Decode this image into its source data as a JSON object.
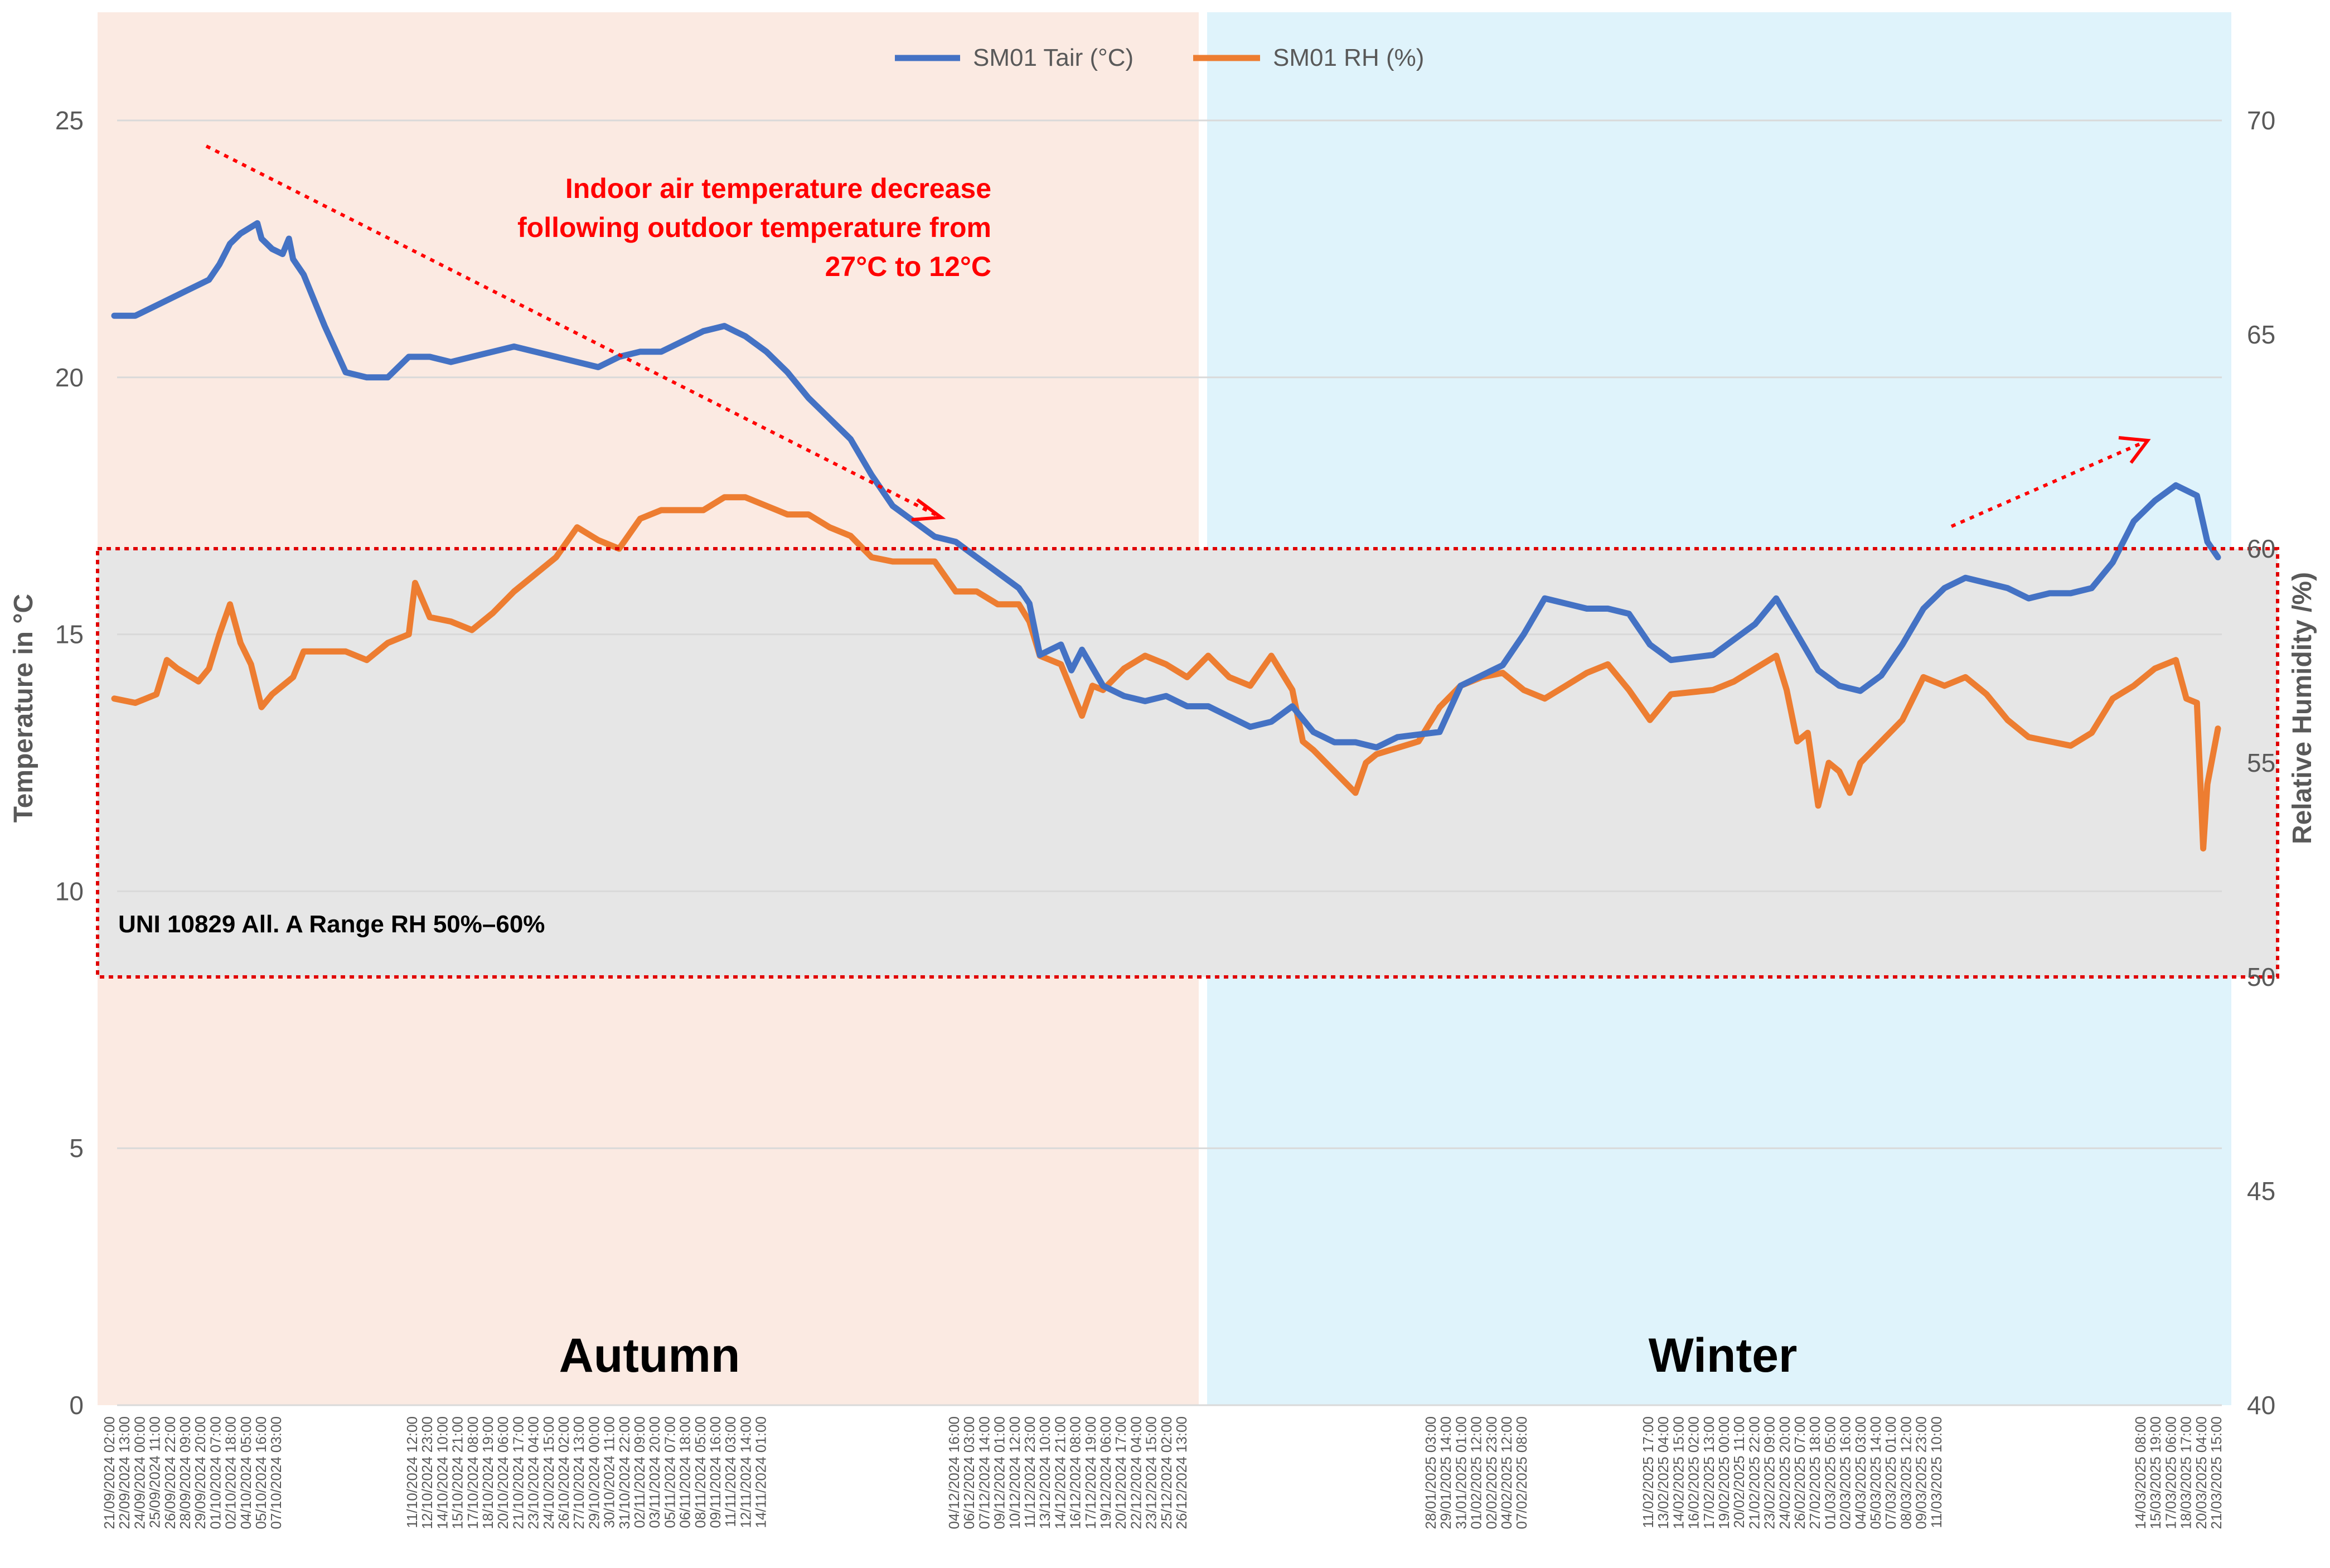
{
  "colors": {
    "autumn_bg": "#fbeae2",
    "winter_bg": "#dff3fb",
    "range_band": "#e6e6e6",
    "range_border": "#e00000",
    "tair": "#4472c4",
    "rh": "#ed7d31",
    "annotation": "#ff0000",
    "axis_text": "#595959",
    "gridline": "#d9d9d9"
  },
  "chart_data": {
    "type": "line",
    "title": "",
    "ylabel": "Temperature in °C",
    "y2label": "Relative Humidity /%)",
    "ylim": [
      0,
      27
    ],
    "y2lim": [
      40,
      72
    ],
    "yticks": [
      "0",
      "5",
      "10",
      "15",
      "20",
      "25"
    ],
    "y2ticks": [
      "40",
      "45",
      "50",
      "55",
      "60",
      "65",
      "70"
    ],
    "legend": {
      "position": "top-center",
      "entries": [
        "SM01 Tair (°C)",
        "SM01 RH (%)"
      ]
    },
    "x_tick_labels": [
      "21/09/2024 02:00",
      "22/09/2024 13:00",
      "24/09/2024 00:00",
      "25/09/2024 11:00",
      "26/09/2024 22:00",
      "28/09/2024 09:00",
      "29/09/2024 20:00",
      "01/10/2024 07:00",
      "02/10/2024 18:00",
      "04/10/2024 05:00",
      "05/10/2024 16:00",
      "07/10/2024 03:00",
      "11/10/2024 12:00",
      "12/10/2024 23:00",
      "14/10/2024 10:00",
      "15/10/2024 21:00",
      "17/10/2024 08:00",
      "18/10/2024 19:00",
      "20/10/2024 06:00",
      "21/10/2024 17:00",
      "23/10/2024 04:00",
      "24/10/2024 15:00",
      "26/10/2024 02:00",
      "27/10/2024 13:00",
      "29/10/2024 00:00",
      "30/10/2024 11:00",
      "31/10/2024 22:00",
      "02/11/2024 09:00",
      "03/11/2024 20:00",
      "05/11/2024 07:00",
      "06/11/2024 18:00",
      "08/11/2024 05:00",
      "09/11/2024 16:00",
      "11/11/2024 03:00",
      "12/11/2024 14:00",
      "14/11/2024 01:00",
      "04/12/2024 16:00",
      "06/12/2024 03:00",
      "07/12/2024 14:00",
      "09/12/2024 01:00",
      "10/12/2024 12:00",
      "11/12/2024 23:00",
      "13/12/2024 10:00",
      "14/12/2024 21:00",
      "16/12/2024 08:00",
      "17/12/2024 19:00",
      "19/12/2024 06:00",
      "20/12/2024 17:00",
      "22/12/2024 04:00",
      "23/12/2024 15:00",
      "25/12/2024 02:00",
      "26/12/2024 13:00",
      "28/01/2025 03:00",
      "29/01/2025 14:00",
      "31/01/2025 01:00",
      "01/02/2025 12:00",
      "02/02/2025 23:00",
      "04/02/2025 12:00",
      "07/02/2025 08:00",
      "11/02/2025 17:00",
      "13/02/2025 04:00",
      "14/02/2025 15:00",
      "16/02/2025 02:00",
      "17/02/2025 13:00",
      "19/02/2025 00:00",
      "20/02/2025 11:00",
      "21/02/2025 22:00",
      "23/02/2025 09:00",
      "24/02/2025 20:00",
      "26/02/2025 07:00",
      "27/02/2025 18:00",
      "01/03/2025 05:00",
      "02/03/2025 16:00",
      "04/03/2025 03:00",
      "05/03/2025 14:00",
      "07/03/2025 01:00",
      "08/03/2025 12:00",
      "09/03/2025 23:00",
      "11/03/2025 10:00",
      "14/03/2025 08:00",
      "15/03/2025 19:00",
      "17/03/2025 06:00",
      "18/03/2025 17:00",
      "20/03/2025 04:00",
      "21/03/2025 15:00"
    ],
    "x_index_range": [
      0,
      100
    ],
    "season_split_index": 52.1,
    "seasons": [
      {
        "name": "Autumn",
        "from": 0,
        "to": 52.1
      },
      {
        "name": "Winter",
        "from": 52.1,
        "to": 100
      }
    ],
    "rh_range": {
      "label": "UNI 10829 All. A Range RH 50%–60%",
      "min_rh": 50,
      "max_rh": 60
    },
    "series": [
      {
        "name": "SM01 Tair (°C)",
        "axis": "left",
        "points": [
          [
            0.0,
            21.2
          ],
          [
            1.0,
            21.2
          ],
          [
            2.0,
            21.4
          ],
          [
            3.5,
            21.7
          ],
          [
            4.5,
            21.9
          ],
          [
            5.0,
            22.2
          ],
          [
            5.5,
            22.6
          ],
          [
            6.0,
            22.8
          ],
          [
            6.8,
            23.0
          ],
          [
            7.0,
            22.7
          ],
          [
            7.5,
            22.5
          ],
          [
            8.0,
            22.4
          ],
          [
            8.3,
            22.7
          ],
          [
            8.5,
            22.3
          ],
          [
            9.0,
            22.0
          ],
          [
            9.5,
            21.5
          ],
          [
            10.0,
            21.0
          ],
          [
            11.0,
            20.1
          ],
          [
            12.0,
            20.0
          ],
          [
            13.0,
            20.0
          ],
          [
            14.0,
            20.4
          ],
          [
            15.0,
            20.4
          ],
          [
            16.0,
            20.3
          ],
          [
            17.0,
            20.4
          ],
          [
            18.0,
            20.5
          ],
          [
            19.0,
            20.6
          ],
          [
            20.0,
            20.5
          ],
          [
            21.0,
            20.4
          ],
          [
            22.0,
            20.3
          ],
          [
            23.0,
            20.2
          ],
          [
            24.0,
            20.4
          ],
          [
            25.0,
            20.5
          ],
          [
            26.0,
            20.5
          ],
          [
            27.0,
            20.7
          ],
          [
            28.0,
            20.9
          ],
          [
            29.0,
            21.0
          ],
          [
            29.5,
            20.9
          ],
          [
            30.0,
            20.8
          ],
          [
            31.0,
            20.5
          ],
          [
            32.0,
            20.1
          ],
          [
            33.0,
            19.6
          ],
          [
            34.0,
            19.2
          ],
          [
            35.0,
            18.8
          ],
          [
            36.0,
            18.1
          ],
          [
            37.0,
            17.5
          ],
          [
            38.0,
            17.2
          ],
          [
            39.0,
            16.9
          ],
          [
            40.0,
            16.8
          ],
          [
            41.0,
            16.5
          ],
          [
            42.0,
            16.2
          ],
          [
            43.0,
            15.9
          ],
          [
            43.5,
            15.6
          ],
          [
            44.0,
            14.6
          ],
          [
            45.0,
            14.8
          ],
          [
            45.5,
            14.3
          ],
          [
            46.0,
            14.7
          ],
          [
            47.0,
            14.0
          ],
          [
            48.0,
            13.8
          ],
          [
            49.0,
            13.7
          ],
          [
            50.0,
            13.8
          ],
          [
            51.0,
            13.6
          ],
          [
            52.0,
            13.6
          ],
          [
            53.0,
            13.4
          ],
          [
            54.0,
            13.2
          ],
          [
            55.0,
            13.3
          ],
          [
            56.0,
            13.6
          ],
          [
            57.0,
            13.1
          ],
          [
            58.0,
            12.9
          ],
          [
            59.0,
            12.9
          ],
          [
            60.0,
            12.8
          ],
          [
            61.0,
            13.0
          ],
          [
            63.0,
            13.1
          ],
          [
            64.0,
            14.0
          ],
          [
            66.0,
            14.4
          ],
          [
            67.0,
            15.0
          ],
          [
            68.0,
            15.7
          ],
          [
            69.0,
            15.6
          ],
          [
            70.0,
            15.5
          ],
          [
            71.0,
            15.5
          ],
          [
            72.0,
            15.4
          ],
          [
            73.0,
            14.8
          ],
          [
            74.0,
            14.5
          ],
          [
            76.0,
            14.6
          ],
          [
            77.0,
            14.9
          ],
          [
            78.0,
            15.2
          ],
          [
            79.0,
            15.7
          ],
          [
            80.0,
            15.0
          ],
          [
            81.0,
            14.3
          ],
          [
            82.0,
            14.0
          ],
          [
            83.0,
            13.9
          ],
          [
            84.0,
            14.2
          ],
          [
            85.0,
            14.8
          ],
          [
            86.0,
            15.5
          ],
          [
            87.0,
            15.9
          ],
          [
            88.0,
            16.1
          ],
          [
            89.0,
            16.0
          ],
          [
            90.0,
            15.9
          ],
          [
            91.0,
            15.7
          ],
          [
            92.0,
            15.8
          ],
          [
            93.0,
            15.8
          ],
          [
            94.0,
            15.9
          ],
          [
            95.0,
            16.4
          ],
          [
            96.0,
            17.2
          ],
          [
            97.0,
            17.6
          ],
          [
            98.0,
            17.9
          ],
          [
            98.5,
            17.8
          ],
          [
            99.0,
            17.7
          ],
          [
            99.5,
            16.8
          ],
          [
            100.0,
            16.5
          ]
        ]
      },
      {
        "name": "SM01 RH (%)",
        "axis": "right",
        "points": [
          [
            0.0,
            56.5
          ],
          [
            1.0,
            56.4
          ],
          [
            2.0,
            56.6
          ],
          [
            2.5,
            57.4
          ],
          [
            3.0,
            57.2
          ],
          [
            4.0,
            56.9
          ],
          [
            4.5,
            57.2
          ],
          [
            5.0,
            58.0
          ],
          [
            5.5,
            58.7
          ],
          [
            6.0,
            57.8
          ],
          [
            6.5,
            57.3
          ],
          [
            7.0,
            56.3
          ],
          [
            7.5,
            56.6
          ],
          [
            8.0,
            56.8
          ],
          [
            8.5,
            57.0
          ],
          [
            9.0,
            57.6
          ],
          [
            10.0,
            57.6
          ],
          [
            11.0,
            57.6
          ],
          [
            12.0,
            57.4
          ],
          [
            13.0,
            57.8
          ],
          [
            14.0,
            58.0
          ],
          [
            14.3,
            59.2
          ],
          [
            15.0,
            58.4
          ],
          [
            16.0,
            58.3
          ],
          [
            17.0,
            58.1
          ],
          [
            18.0,
            58.5
          ],
          [
            19.0,
            59.0
          ],
          [
            20.0,
            59.4
          ],
          [
            21.0,
            59.8
          ],
          [
            22.0,
            60.5
          ],
          [
            23.0,
            60.2
          ],
          [
            24.0,
            60.0
          ],
          [
            25.0,
            60.7
          ],
          [
            26.0,
            60.9
          ],
          [
            27.0,
            60.9
          ],
          [
            28.0,
            60.9
          ],
          [
            29.0,
            61.2
          ],
          [
            30.0,
            61.2
          ],
          [
            31.0,
            61.0
          ],
          [
            32.0,
            60.8
          ],
          [
            33.0,
            60.8
          ],
          [
            34.0,
            60.5
          ],
          [
            35.0,
            60.3
          ],
          [
            36.0,
            59.8
          ],
          [
            37.0,
            59.7
          ],
          [
            38.0,
            59.7
          ],
          [
            39.0,
            59.7
          ],
          [
            40.0,
            59.0
          ],
          [
            41.0,
            59.0
          ],
          [
            42.0,
            58.7
          ],
          [
            43.0,
            58.7
          ],
          [
            43.5,
            58.3
          ],
          [
            44.0,
            57.5
          ],
          [
            45.0,
            57.3
          ],
          [
            45.5,
            56.7
          ],
          [
            46.0,
            56.1
          ],
          [
            46.5,
            56.8
          ],
          [
            47.0,
            56.7
          ],
          [
            48.0,
            57.2
          ],
          [
            49.0,
            57.5
          ],
          [
            50.0,
            57.3
          ],
          [
            51.0,
            57.0
          ],
          [
            52.0,
            57.5
          ],
          [
            53.0,
            57.0
          ],
          [
            54.0,
            56.8
          ],
          [
            55.0,
            57.5
          ],
          [
            56.0,
            56.7
          ],
          [
            56.5,
            55.5
          ],
          [
            57.0,
            55.3
          ],
          [
            58.0,
            54.8
          ],
          [
            59.0,
            54.3
          ],
          [
            59.5,
            55.0
          ],
          [
            60.0,
            55.2
          ],
          [
            62.0,
            55.5
          ],
          [
            63.0,
            56.3
          ],
          [
            64.0,
            56.8
          ],
          [
            65.0,
            57.0
          ],
          [
            66.0,
            57.1
          ],
          [
            67.0,
            56.7
          ],
          [
            68.0,
            56.5
          ],
          [
            69.0,
            56.8
          ],
          [
            70.0,
            57.1
          ],
          [
            71.0,
            57.3
          ],
          [
            72.0,
            56.7
          ],
          [
            73.0,
            56.0
          ],
          [
            74.0,
            56.6
          ],
          [
            76.0,
            56.7
          ],
          [
            77.0,
            56.9
          ],
          [
            78.0,
            57.2
          ],
          [
            79.0,
            57.5
          ],
          [
            79.5,
            56.7
          ],
          [
            80.0,
            55.5
          ],
          [
            80.5,
            55.7
          ],
          [
            81.0,
            54.0
          ],
          [
            81.5,
            55.0
          ],
          [
            82.0,
            54.8
          ],
          [
            82.5,
            54.3
          ],
          [
            83.0,
            55.0
          ],
          [
            84.0,
            55.5
          ],
          [
            85.0,
            56.0
          ],
          [
            86.0,
            57.0
          ],
          [
            87.0,
            56.8
          ],
          [
            88.0,
            57.0
          ],
          [
            89.0,
            56.6
          ],
          [
            90.0,
            56.0
          ],
          [
            91.0,
            55.6
          ],
          [
            92.0,
            55.5
          ],
          [
            93.0,
            55.4
          ],
          [
            94.0,
            55.7
          ],
          [
            95.0,
            56.5
          ],
          [
            96.0,
            56.8
          ],
          [
            97.0,
            57.2
          ],
          [
            98.0,
            57.4
          ],
          [
            98.5,
            56.5
          ],
          [
            99.0,
            56.4
          ],
          [
            99.3,
            53.0
          ],
          [
            99.5,
            54.5
          ],
          [
            100.0,
            55.8
          ]
        ]
      }
    ],
    "annotations": [
      {
        "text": "Indoor air temperature decrease",
        "role": "trend-note"
      },
      {
        "text": "following outdoor temperature from",
        "role": "trend-note"
      },
      {
        "text": "27°C to 12°C",
        "role": "trend-note"
      }
    ]
  }
}
